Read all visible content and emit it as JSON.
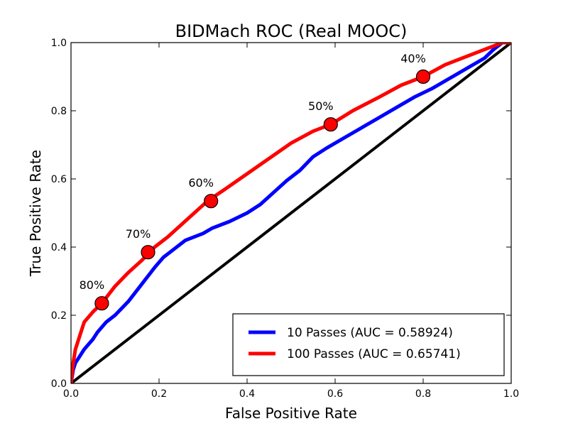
{
  "chart_data": {
    "type": "line",
    "title": "BIDMach ROC (Real MOOC)",
    "xlabel": "False Positive Rate",
    "ylabel": "True Positive Rate",
    "xlim": [
      0,
      1
    ],
    "ylim": [
      0,
      1
    ],
    "xticks": [
      "0.0",
      "0.2",
      "0.4",
      "0.6",
      "0.8",
      "1.0"
    ],
    "yticks": [
      "0.0",
      "0.2",
      "0.4",
      "0.6",
      "0.8",
      "1.0"
    ],
    "grid": false,
    "legend_position": "lower-right",
    "diagonal": {
      "x": [
        0,
        1
      ],
      "y": [
        0,
        1
      ],
      "color": "#000000"
    },
    "series": [
      {
        "name": "10 Passes (AUC = 0.58924)",
        "color": "#0000ff",
        "x": [
          0,
          0.005,
          0.01,
          0.02,
          0.03,
          0.05,
          0.06,
          0.08,
          0.1,
          0.13,
          0.16,
          0.19,
          0.21,
          0.23,
          0.26,
          0.3,
          0.32,
          0.36,
          0.4,
          0.43,
          0.46,
          0.49,
          0.52,
          0.55,
          0.58,
          0.62,
          0.66,
          0.7,
          0.74,
          0.78,
          0.82,
          0.86,
          0.9,
          0.94,
          0.96,
          0.98,
          1.0
        ],
        "y": [
          0,
          0.04,
          0.06,
          0.08,
          0.1,
          0.13,
          0.15,
          0.18,
          0.2,
          0.24,
          0.29,
          0.34,
          0.37,
          0.39,
          0.42,
          0.44,
          0.455,
          0.475,
          0.5,
          0.525,
          0.56,
          0.595,
          0.625,
          0.665,
          0.69,
          0.72,
          0.75,
          0.78,
          0.81,
          0.84,
          0.865,
          0.895,
          0.925,
          0.955,
          0.98,
          1.0,
          1.0
        ]
      },
      {
        "name": "100 Passes (AUC = 0.65741)",
        "color": "#ff0000",
        "x": [
          0,
          0.005,
          0.01,
          0.02,
          0.03,
          0.05,
          0.07,
          0.1,
          0.13,
          0.16,
          0.19,
          0.22,
          0.25,
          0.28,
          0.31,
          0.35,
          0.4,
          0.45,
          0.5,
          0.55,
          0.59,
          0.64,
          0.7,
          0.75,
          0.8,
          0.85,
          0.9,
          0.95,
          0.98,
          1.0
        ],
        "y": [
          0,
          0.06,
          0.1,
          0.14,
          0.18,
          0.21,
          0.235,
          0.285,
          0.325,
          0.36,
          0.4,
          0.43,
          0.465,
          0.5,
          0.535,
          0.57,
          0.615,
          0.66,
          0.705,
          0.74,
          0.76,
          0.8,
          0.84,
          0.875,
          0.9,
          0.935,
          0.96,
          0.985,
          1.0,
          1.0
        ]
      }
    ],
    "markers": [
      {
        "x": 0.07,
        "y": 0.235,
        "label": "80%"
      },
      {
        "x": 0.175,
        "y": 0.385,
        "label": "70%"
      },
      {
        "x": 0.318,
        "y": 0.535,
        "label": "60%"
      },
      {
        "x": 0.59,
        "y": 0.76,
        "label": "50%"
      },
      {
        "x": 0.8,
        "y": 0.9,
        "label": "40%"
      }
    ],
    "marker_color": "#ff0000"
  }
}
